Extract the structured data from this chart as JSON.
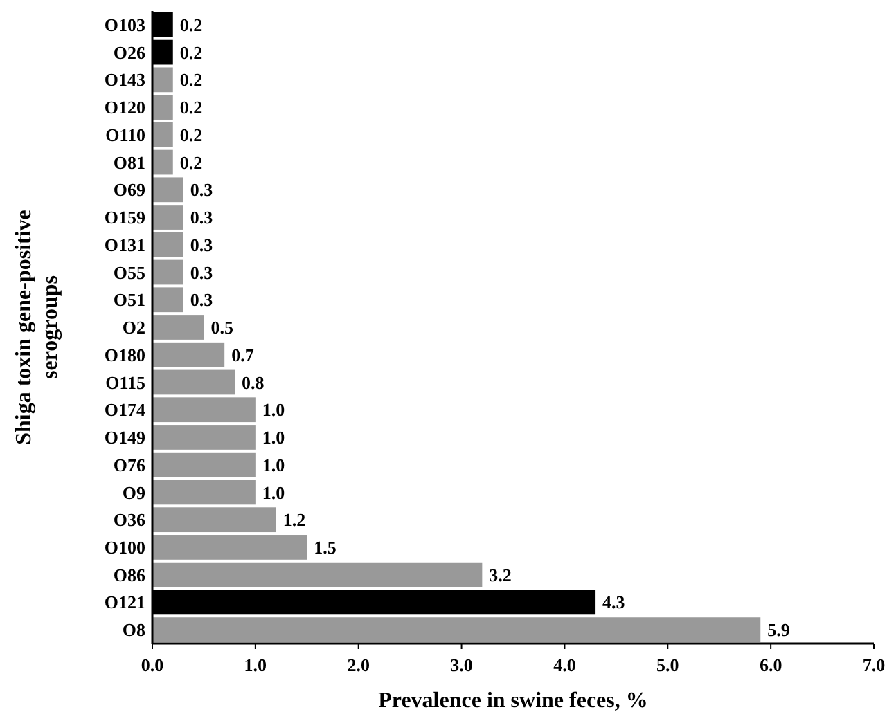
{
  "chart_data": {
    "type": "bar",
    "orientation": "horizontal",
    "xlabel": "Prevalence in swine feces, %",
    "ylabel": "Shiga toxin gene-positive serogroups",
    "categories": [
      "O103",
      "O26",
      "O143",
      "O120",
      "O110",
      "O81",
      "O69",
      "O159",
      "O131",
      "O55",
      "O51",
      "O2",
      "O180",
      "O115",
      "O174",
      "O149",
      "O76",
      "O9",
      "O36",
      "O100",
      "O86",
      "O121",
      "O8"
    ],
    "values": [
      0.2,
      0.2,
      0.2,
      0.2,
      0.2,
      0.2,
      0.3,
      0.3,
      0.3,
      0.3,
      0.3,
      0.5,
      0.7,
      0.8,
      1.0,
      1.0,
      1.0,
      1.0,
      1.2,
      1.5,
      3.2,
      4.3,
      5.9
    ],
    "value_labels": [
      "0.2",
      "0.2",
      "0.2",
      "0.2",
      "0.2",
      "0.2",
      "0.3",
      "0.3",
      "0.3",
      "0.3",
      "0.3",
      "0.5",
      "0.7",
      "0.8",
      "1.0",
      "1.0",
      "1.0",
      "1.0",
      "1.2",
      "1.5",
      "3.2",
      "4.3",
      "5.9"
    ],
    "colors": [
      "#000000",
      "#000000",
      "#999999",
      "#999999",
      "#999999",
      "#999999",
      "#999999",
      "#999999",
      "#999999",
      "#999999",
      "#999999",
      "#999999",
      "#999999",
      "#999999",
      "#999999",
      "#999999",
      "#999999",
      "#999999",
      "#999999",
      "#999999",
      "#999999",
      "#000000",
      "#999999"
    ],
    "xlim": [
      0,
      7
    ],
    "xticks": [
      {
        "value": 0,
        "label": "0.0"
      },
      {
        "value": 1,
        "label": "1.0"
      },
      {
        "value": 2,
        "label": "2.0"
      },
      {
        "value": 3,
        "label": "3.0"
      },
      {
        "value": 4,
        "label": "4.0"
      },
      {
        "value": 5,
        "label": "5.0"
      },
      {
        "value": 6,
        "label": "6.0"
      },
      {
        "value": 7,
        "label": "7.0"
      }
    ],
    "grid": false
  }
}
